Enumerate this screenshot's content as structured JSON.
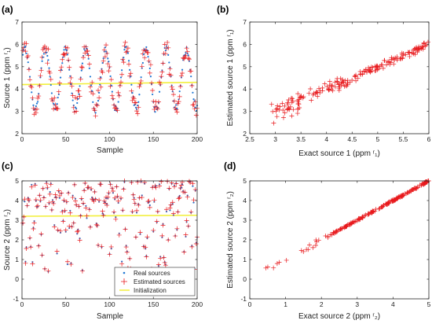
{
  "chart_data": [
    {
      "panel": "(a)",
      "type": "line",
      "xlabel": "Sample",
      "ylabel": "Source 1 (ppm r1)",
      "xlim": [
        0,
        200
      ],
      "ylim": [
        2,
        7
      ],
      "xticks": [
        0,
        50,
        100,
        150,
        200
      ],
      "yticks": [
        2,
        3,
        4,
        5,
        6,
        7
      ],
      "series": [
        {
          "name": "Real sources",
          "style": "dots",
          "color": "#1f77d4",
          "period": 23,
          "min": 2.9,
          "max": 6.0,
          "n": 200
        },
        {
          "name": "Estimated sources",
          "style": "plus",
          "color": "#e8191c",
          "period": 23,
          "min": 2.3,
          "max": 6.2,
          "n": 200
        },
        {
          "name": "Initialization",
          "style": "line",
          "color": "#f2ef3a",
          "x": [
            0,
            200
          ],
          "y": [
            4.2,
            4.3
          ]
        }
      ]
    },
    {
      "panel": "(b)",
      "type": "scatter",
      "xlabel": "Exact source 1 (ppm r1)",
      "ylabel": "Estimated source 1 (ppm r1)",
      "xlim": [
        2.5,
        6
      ],
      "ylim": [
        2,
        7
      ],
      "xticks": [
        2.5,
        3,
        3.5,
        4,
        4.5,
        5,
        5.5,
        6
      ],
      "yticks": [
        2,
        3,
        4,
        5,
        6,
        7
      ],
      "series": [
        {
          "style": "plus",
          "color": "#e8191c",
          "n": 200,
          "trend": [
            [
              2.9,
              3.0
            ],
            [
              6.0,
              6.0
            ]
          ]
        }
      ]
    },
    {
      "panel": "(c)",
      "type": "line",
      "xlabel": "Sample",
      "ylabel": "Source 2 (ppm r2)",
      "xlim": [
        0,
        200
      ],
      "ylim": [
        -1,
        5
      ],
      "xticks": [
        0,
        50,
        100,
        150,
        200
      ],
      "yticks": [
        -1,
        0,
        1,
        2,
        3,
        4,
        5
      ],
      "series": [
        {
          "name": "Real sources",
          "style": "dots",
          "color": "#1f77d4",
          "n": 200,
          "min": 0.3,
          "max": 5.0
        },
        {
          "name": "Estimated sources",
          "style": "plus",
          "color": "#e8191c",
          "n": 200,
          "min": 0.0,
          "max": 5.0
        },
        {
          "name": "Initialization",
          "style": "line",
          "color": "#f2ef3a",
          "x": [
            0,
            200
          ],
          "y": [
            3.2,
            3.25
          ]
        }
      ],
      "legend": {
        "placement": "bottom-right",
        "entries": [
          "Real sources",
          "Estimated sources",
          "Initialization"
        ]
      }
    },
    {
      "panel": "(d)",
      "type": "scatter",
      "xlabel": "Exact source 2 (ppm r2)",
      "ylabel": "Estimated source 2 (ppm r2)",
      "xlim": [
        0,
        5
      ],
      "ylim": [
        -1,
        5
      ],
      "xticks": [
        0,
        1,
        2,
        3,
        4,
        5
      ],
      "yticks": [
        -1,
        0,
        1,
        2,
        3,
        4,
        5
      ],
      "series": [
        {
          "style": "plus",
          "color": "#e8191c",
          "n": 200,
          "trend": [
            [
              0.3,
              0.3
            ],
            [
              5.0,
              5.0
            ]
          ]
        }
      ]
    }
  ],
  "panels": {
    "a": {
      "label": "(a)",
      "xlabel": "Sample",
      "ylabel": "Source 1 (ppm ʳ₁)"
    },
    "b": {
      "label": "(b)",
      "xlabel": "Exact source 1 (ppm ʳ₁)",
      "ylabel": "Estimated source 1 (ppm ʳ₁)"
    },
    "c": {
      "label": "(c)",
      "xlabel": "Sample",
      "ylabel": "Source 2 (ppm ʳ₂)"
    },
    "d": {
      "label": "(d)",
      "xlabel": "Exact source 2 (ppm ʳ₂)",
      "ylabel": "Estimated source 2 (ppm ʳ₂)"
    }
  },
  "legend": {
    "real": "Real sources",
    "estimated": "Estimated sources",
    "init": "Initialization"
  },
  "colors": {
    "real": "#1f77d4",
    "estimated": "#e8191c",
    "init": "#f2ef3a",
    "axis": "#262626"
  }
}
